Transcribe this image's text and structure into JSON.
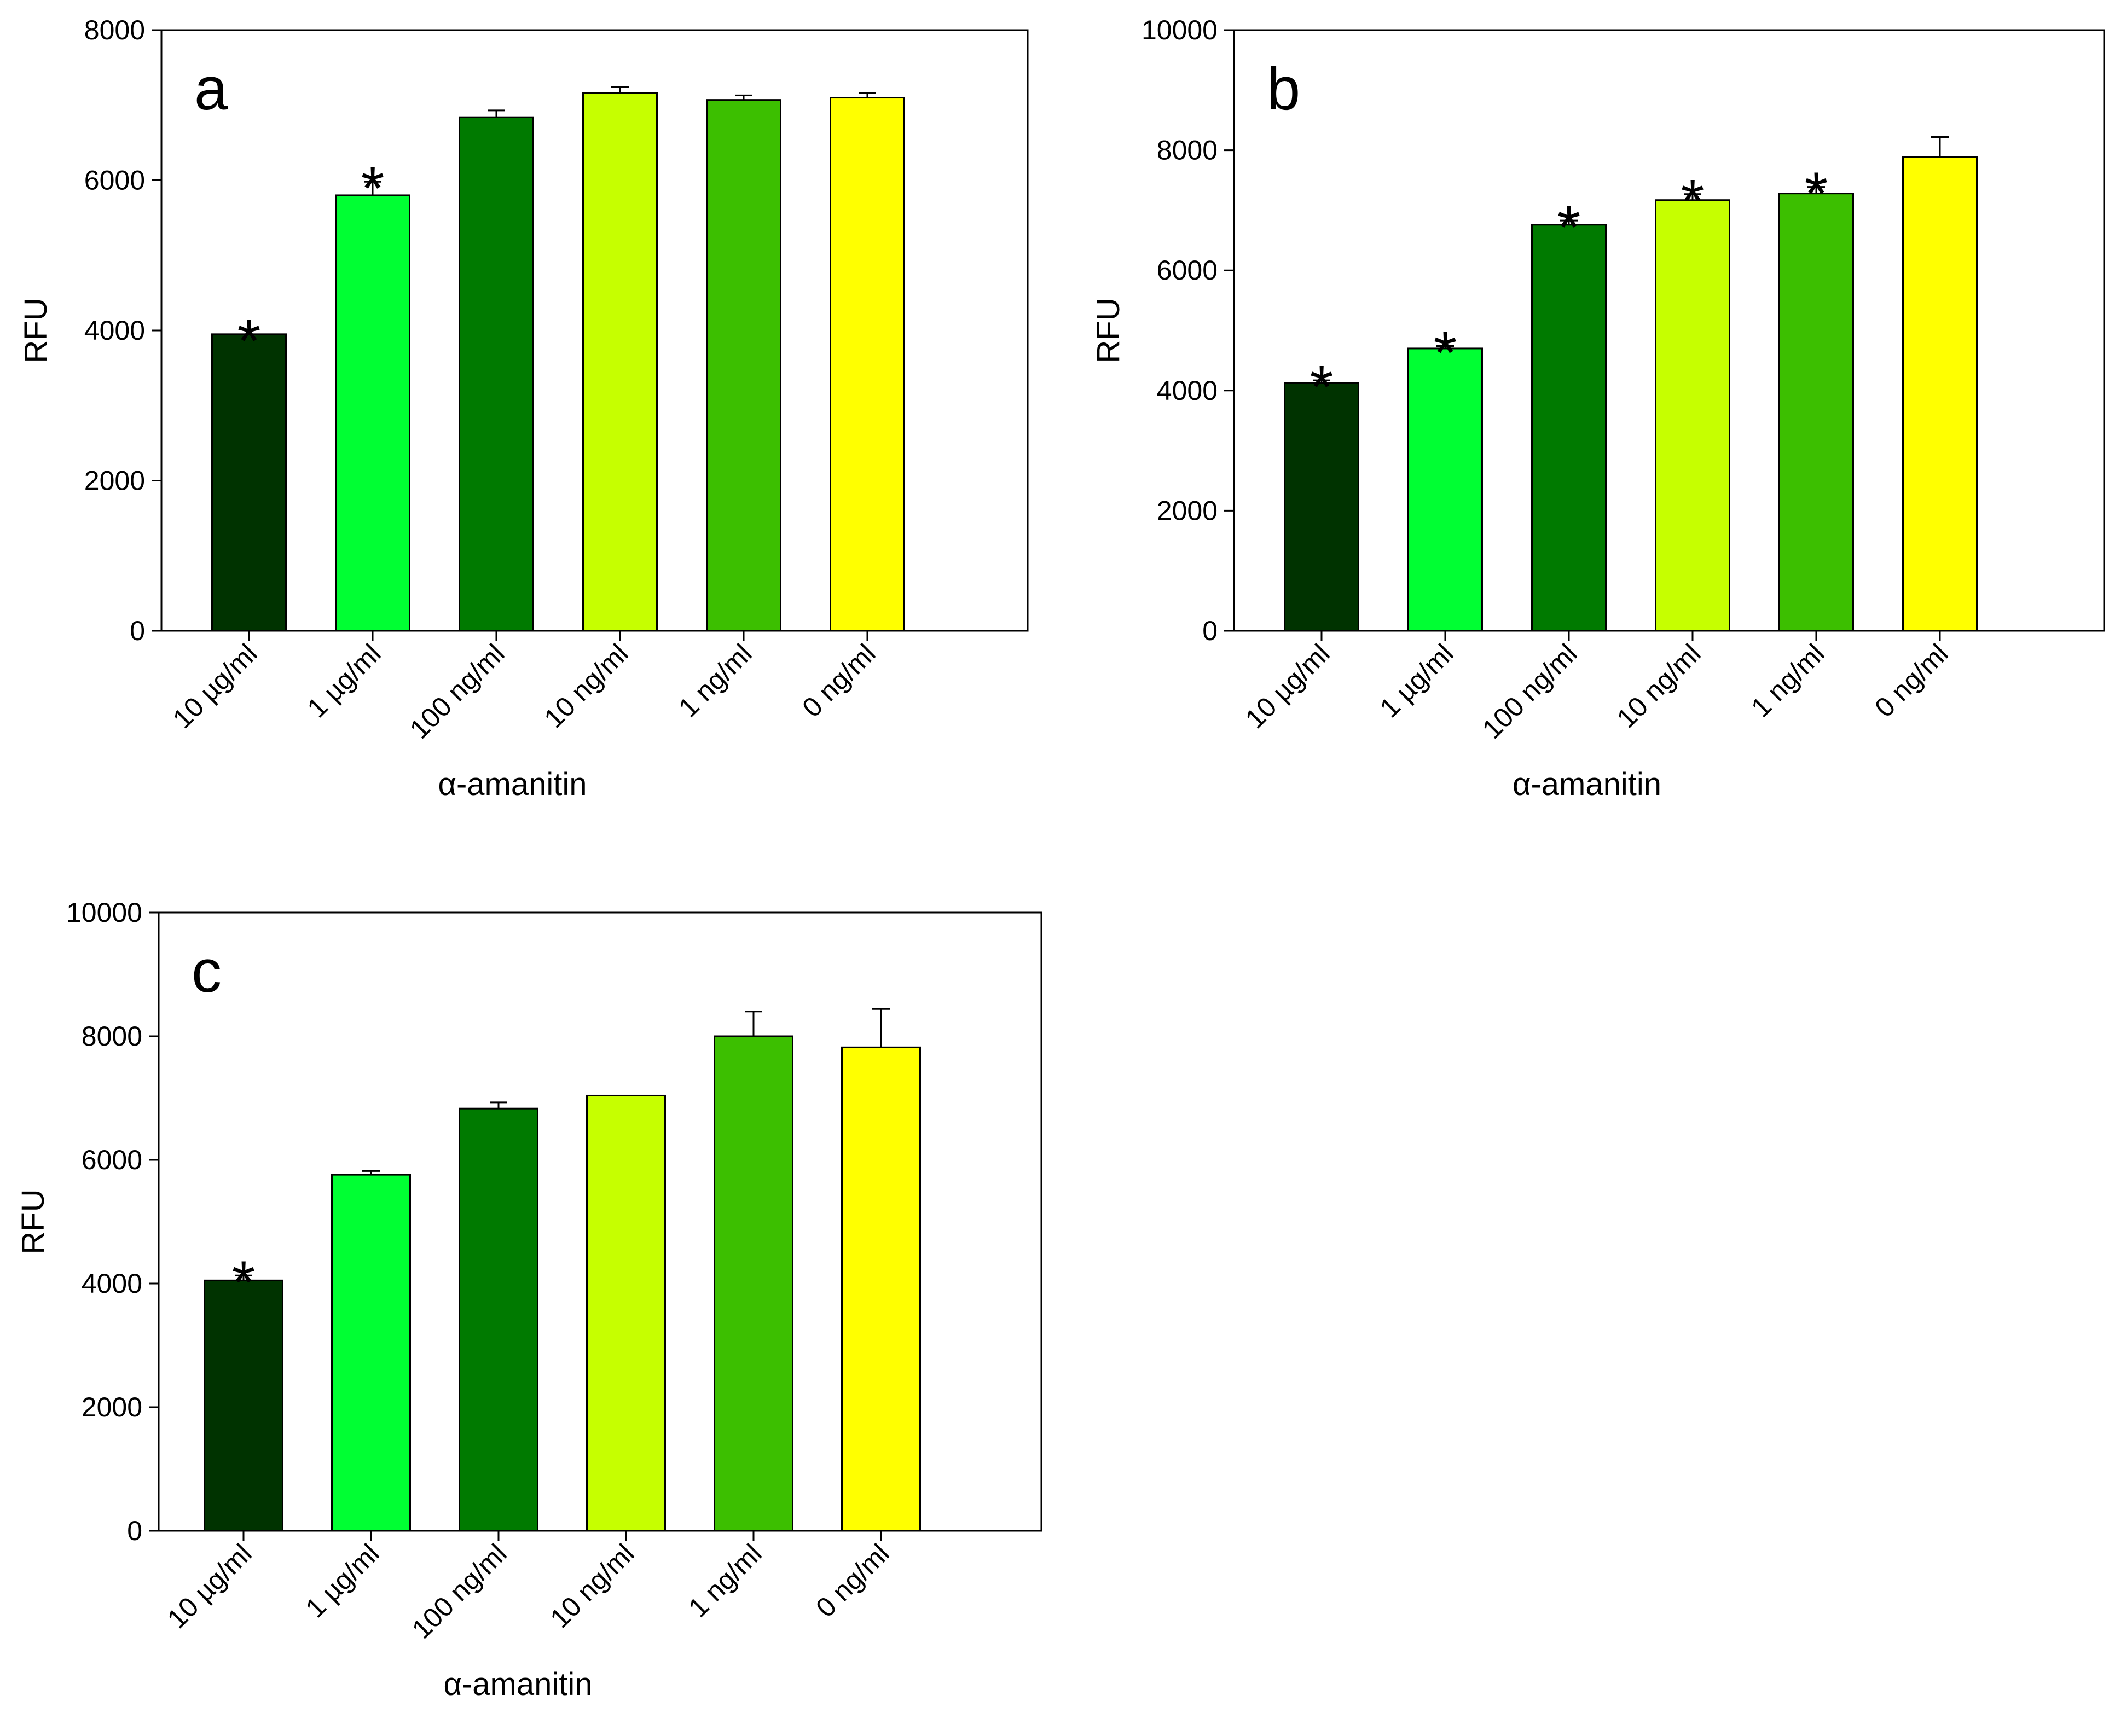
{
  "chart_data": [
    {
      "type": "bar",
      "panel_label": "a",
      "categories": [
        "10 µg/ml",
        "1 µg/ml",
        "100 ng/ml",
        "10 ng/ml",
        "1 ng/ml",
        "0 ng/ml"
      ],
      "values": [
        3950,
        5800,
        6840,
        7160,
        7070,
        7100
      ],
      "errors": [
        0,
        180,
        90,
        80,
        60,
        60
      ],
      "significant": [
        true,
        true,
        false,
        false,
        false,
        false
      ],
      "colors": [
        "#003300",
        "#00ff33",
        "#007a00",
        "#c6ff00",
        "#3cbf00",
        "#ffff00"
      ],
      "xlabel": "α-amanitin",
      "ylabel": "RFU",
      "ylim": [
        0,
        8000
      ],
      "yticks": [
        0,
        2000,
        4000,
        6000,
        8000
      ],
      "marker": "*"
    },
    {
      "type": "bar",
      "panel_label": "b",
      "categories": [
        "10 µg/ml",
        "1 µg/ml",
        "100 ng/ml",
        "10 ng/ml",
        "1 ng/ml",
        "0 ng/ml"
      ],
      "values": [
        4130,
        4700,
        6760,
        7170,
        7280,
        7890
      ],
      "errors": [
        40,
        40,
        70,
        100,
        110,
        330
      ],
      "significant": [
        true,
        true,
        true,
        true,
        true,
        false
      ],
      "colors": [
        "#003300",
        "#00ff33",
        "#007a00",
        "#c6ff00",
        "#3cbf00",
        "#ffff00"
      ],
      "xlabel": "α-amanitin",
      "ylabel": "RFU",
      "ylim": [
        0,
        10000
      ],
      "yticks": [
        0,
        2000,
        4000,
        6000,
        8000,
        10000
      ],
      "marker": "*"
    },
    {
      "type": "bar",
      "panel_label": "c",
      "categories": [
        "10 µg/ml",
        "1 µg/ml",
        "100 ng/ml",
        "10 ng/ml",
        "1 ng/ml",
        "0 ng/ml"
      ],
      "values": [
        4050,
        5760,
        6830,
        7040,
        8000,
        7820
      ],
      "errors": [
        80,
        60,
        100,
        0,
        400,
        620
      ],
      "significant": [
        true,
        false,
        false,
        false,
        false,
        false
      ],
      "colors": [
        "#003300",
        "#00ff33",
        "#007a00",
        "#c6ff00",
        "#3cbf00",
        "#ffff00"
      ],
      "xlabel": "α-amanitin",
      "ylabel": "RFU",
      "ylim": [
        0,
        10000
      ],
      "yticks": [
        0,
        2000,
        4000,
        6000,
        8000,
        10000
      ],
      "marker": "*"
    }
  ]
}
